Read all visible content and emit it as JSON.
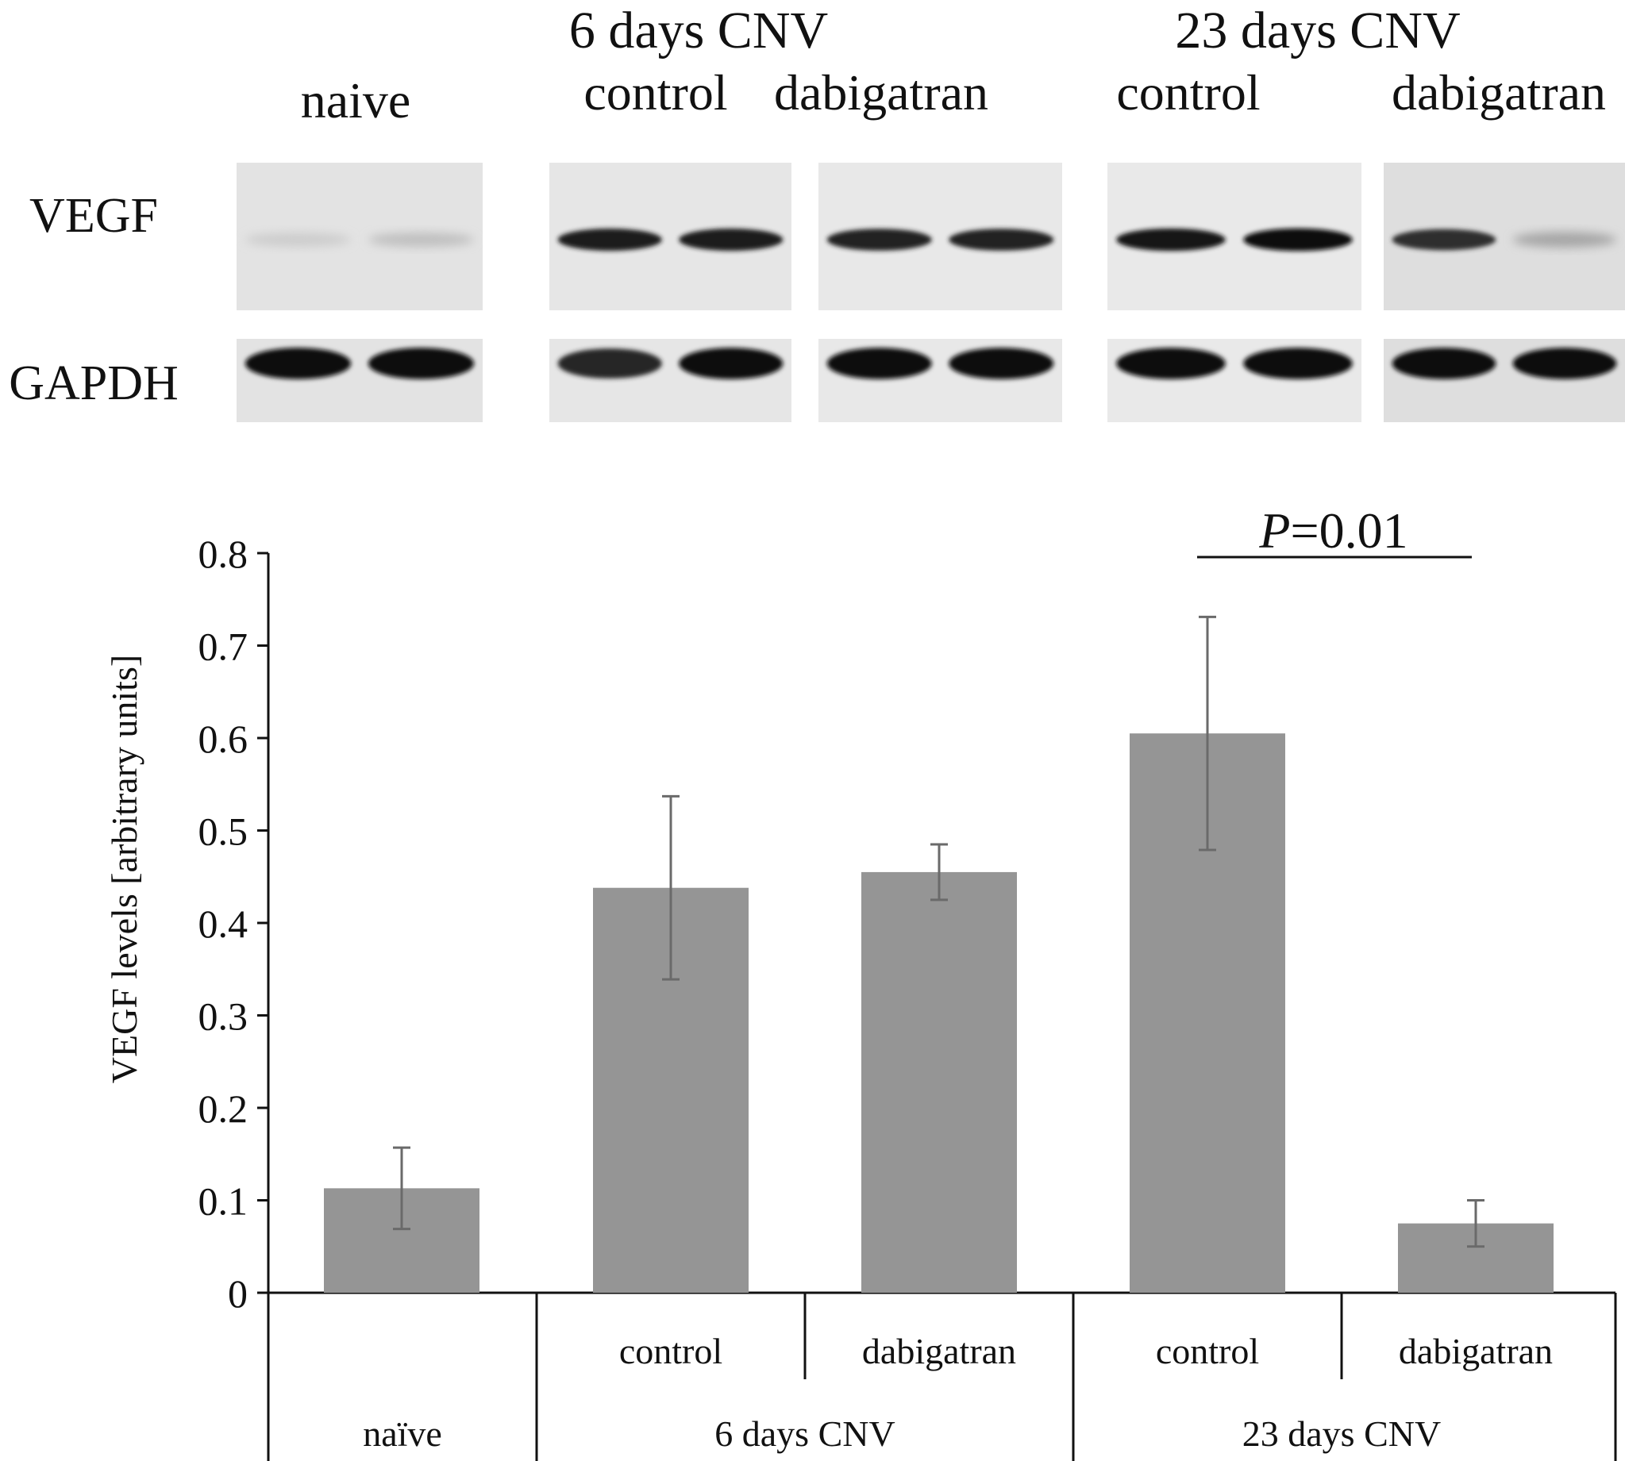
{
  "blot": {
    "group_titles": [
      {
        "text": "6 days CNV",
        "group": "6d"
      },
      {
        "text": "23 days CNV",
        "group": "23d"
      }
    ],
    "lane_labels": [
      "naive",
      "control",
      "dabigatran",
      "control",
      "dabigatran"
    ],
    "row_labels": [
      "VEGF",
      "GAPDH"
    ],
    "vegf_band_intensity": [
      [
        0.12,
        0.18
      ],
      [
        0.95,
        0.95
      ],
      [
        0.92,
        0.92
      ],
      [
        0.98,
        1.0
      ],
      [
        0.85,
        0.3
      ]
    ],
    "gapdh_band_intensity": [
      [
        1.0,
        1.0
      ],
      [
        0.9,
        1.0
      ],
      [
        1.0,
        1.0
      ],
      [
        1.0,
        1.0
      ],
      [
        1.0,
        1.0
      ]
    ]
  },
  "chart_data": {
    "type": "bar",
    "title": "",
    "xlabel": "",
    "ylabel": "VEGF levels [arbitrary units]",
    "ylim": [
      0,
      0.8
    ],
    "yticks": [
      "0",
      "0.1",
      "0.2",
      "0.3",
      "0.4",
      "0.5",
      "0.6",
      "0.7",
      "0.8"
    ],
    "categories": [
      "naïve",
      "control",
      "dabigatran",
      "control",
      "dabigatran"
    ],
    "groups": [
      {
        "label": "naïve",
        "span": [
          0,
          0
        ]
      },
      {
        "label": "6 days CNV",
        "span": [
          1,
          2
        ]
      },
      {
        "label": "23 days CNV",
        "span": [
          3,
          4
        ]
      }
    ],
    "sublabels": [
      "",
      "control",
      "dabigatran",
      "control",
      "dabigatran"
    ],
    "values": [
      0.113,
      0.438,
      0.455,
      0.605,
      0.075
    ],
    "errors": [
      0.044,
      0.099,
      0.03,
      0.126,
      0.025
    ],
    "bar_color": "#959595",
    "error_color": "#6a6a6a",
    "grid": false,
    "annotation": {
      "italic": "P",
      "text": "=0.01",
      "between": [
        3,
        4
      ]
    }
  }
}
